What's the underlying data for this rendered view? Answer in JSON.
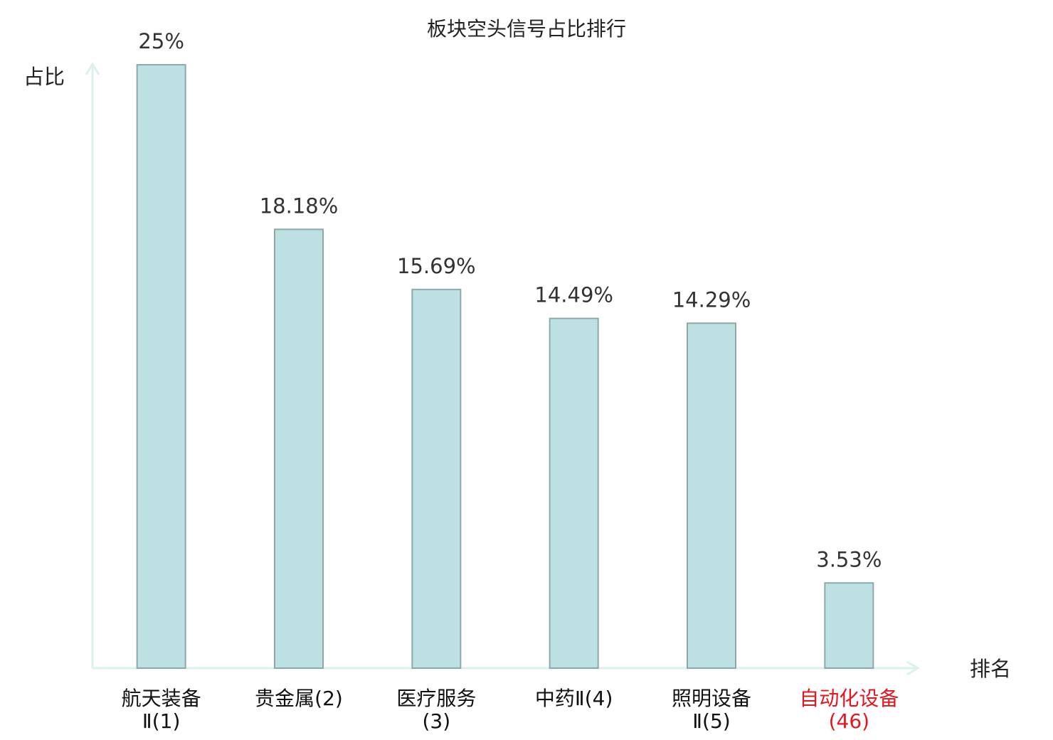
{
  "chart_data": {
    "type": "bar",
    "title": "板块空头信号占比排行",
    "y_label": "占比",
    "x_label": "排名",
    "categories": [
      "航天装备Ⅱ(1)",
      "贵金属(2)",
      "医疗服务(3)",
      "中药Ⅱ(4)",
      "照明设备Ⅱ(5)",
      "自动化设备(46)"
    ],
    "category_colors": [
      "#111111",
      "#111111",
      "#111111",
      "#111111",
      "#111111",
      "#e8161c"
    ],
    "values": [
      25,
      18.18,
      15.69,
      14.49,
      14.29,
      3.53
    ],
    "value_labels": [
      "25%",
      "18.18%",
      "15.69%",
      "14.49%",
      "14.29%",
      "3.53%"
    ],
    "color": "#bde0e2",
    "edge_color": "#8fa9ab",
    "axis_color": "#dcf0ee",
    "ylim": [
      0,
      25
    ]
  }
}
